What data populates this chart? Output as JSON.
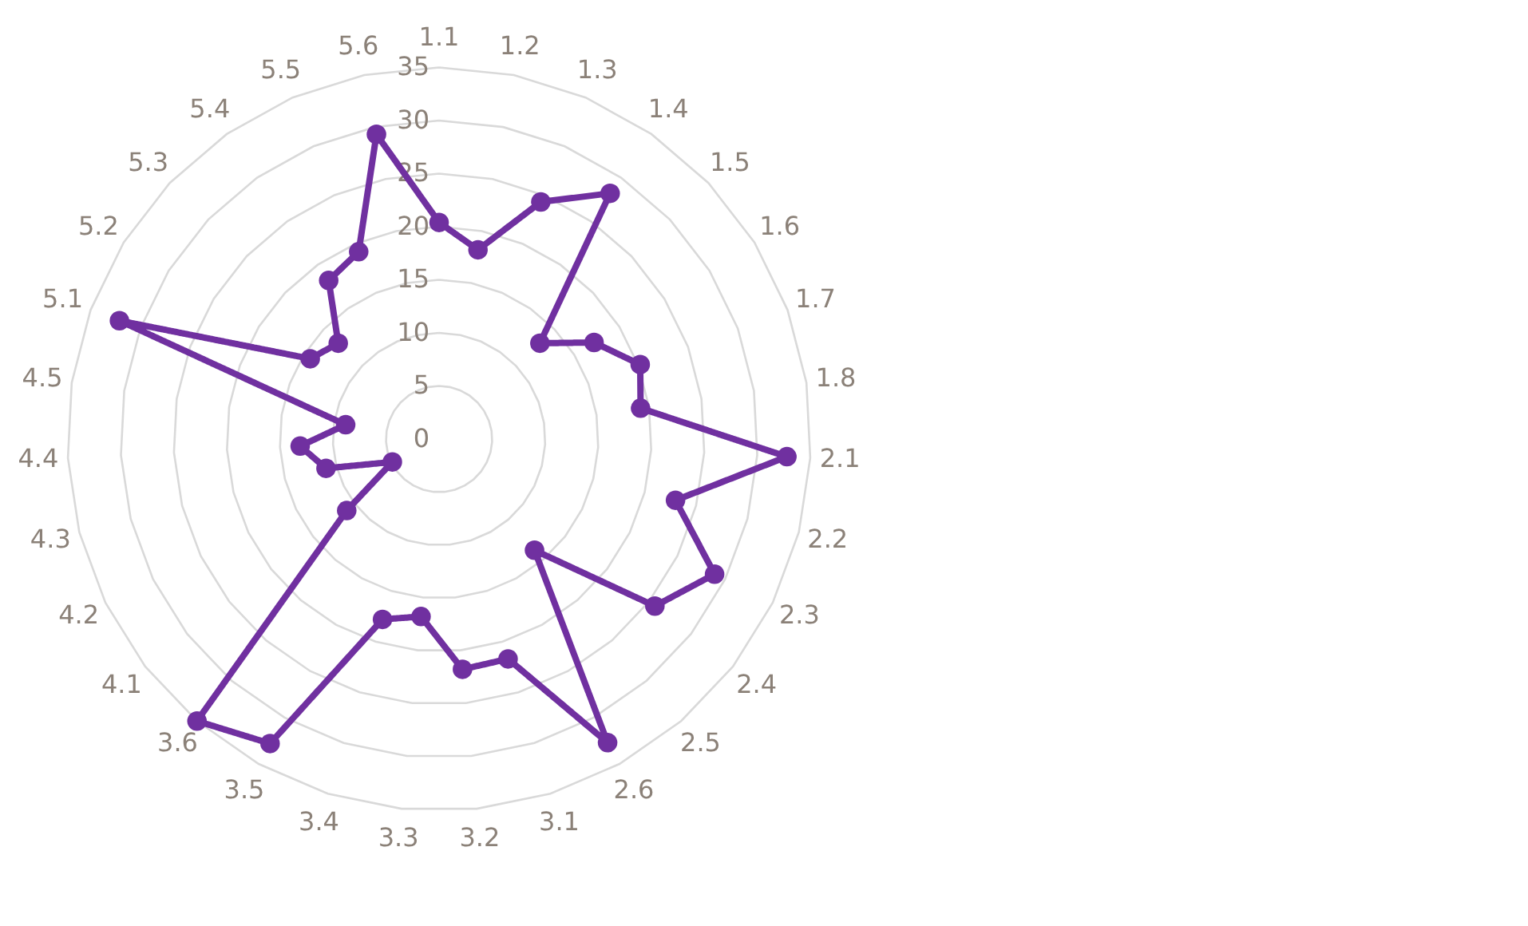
{
  "chart_data": {
    "type": "radar",
    "categories": [
      "1.1",
      "1.2",
      "1.3",
      "1.4",
      "1.5",
      "1.6",
      "1.7",
      "1.8",
      "2.1",
      "2.2",
      "2.3",
      "2.4",
      "2.5",
      "2.6",
      "3.1",
      "3.2",
      "3.3",
      "3.4",
      "3.5",
      "3.6",
      "4.1",
      "4.2",
      "4.3",
      "4.4",
      "4.5",
      "5.1",
      "5.2",
      "5.3",
      "5.4",
      "5.5",
      "5.6"
    ],
    "series": [
      {
        "color": "#7030a0",
        "values": [
          20.4,
          18.2,
          24.3,
          28.2,
          13.1,
          17.2,
          20.2,
          19.2,
          32.8,
          23,
          28.9,
          25.7,
          13.8,
          32.7,
          21.7,
          21.8,
          16.8,
          17.8,
          32.8,
          35,
          11,
          4.9,
          11,
          13.1,
          8.9,
          32.1,
          14.3,
          13.1,
          18.2,
          19.2,
          29.3
        ]
      }
    ],
    "ylim": [
      0,
      35
    ],
    "yticks": [
      0,
      5,
      10,
      15,
      20,
      25,
      30,
      35
    ],
    "grid": true,
    "marker": "circle",
    "line_style": "solid"
  }
}
